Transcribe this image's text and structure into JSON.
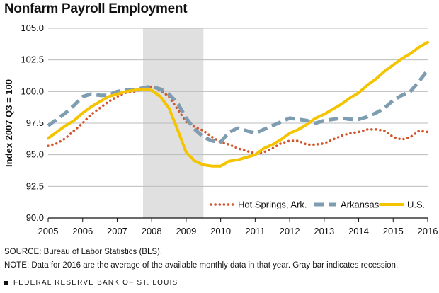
{
  "title": "Nonfarm Payroll Employment",
  "source": "SOURCE: Bureau of Labor Statistics (BLS).",
  "note": "NOTE: Data for 2016 are the average of the available monthly data in that year. Gray bar indicates recession.",
  "footer": "FEDERAL RESERVE BANK OF ST. LOUIS",
  "chart_data": {
    "type": "line",
    "title": "Nonfarm Payroll Employment",
    "xlabel": "",
    "ylabel": "Index 2007 Q3 = 100",
    "xlim": [
      2005,
      2016
    ],
    "ylim": [
      90,
      105
    ],
    "x_ticks": [
      "2005",
      "2006",
      "2007",
      "2008",
      "2009",
      "2010",
      "2011",
      "2012",
      "2013",
      "2014",
      "2015",
      "2016"
    ],
    "y_ticks": [
      "90.0",
      "92.5",
      "95.0",
      "97.5",
      "100.0",
      "102.5",
      "105.0"
    ],
    "grid": "horizontal",
    "legend_position": "bottom-right",
    "recession": [
      2007.75,
      2009.5
    ],
    "colors": {
      "hot_springs": "#d4552b",
      "arkansas": "#7f9db1",
      "us": "#f5c400",
      "recession": "#e0e0e0"
    },
    "series": [
      {
        "name": "Hot Springs, Ark.",
        "style": "dotted",
        "x": [
          2005,
          2005.25,
          2005.5,
          2005.75,
          2006,
          2006.25,
          2006.5,
          2006.75,
          2007,
          2007.25,
          2007.5,
          2007.75,
          2008,
          2008.25,
          2008.5,
          2008.75,
          2009,
          2009.25,
          2009.5,
          2009.75,
          2010,
          2010.25,
          2010.5,
          2010.75,
          2011,
          2011.25,
          2011.5,
          2011.75,
          2012,
          2012.25,
          2012.5,
          2012.75,
          2013,
          2013.25,
          2013.5,
          2013.75,
          2014,
          2014.25,
          2014.5,
          2014.75,
          2015,
          2015.25,
          2015.5,
          2015.75,
          2016
        ],
        "values": [
          95.7,
          95.9,
          96.3,
          96.9,
          97.5,
          98.2,
          98.7,
          99.2,
          99.6,
          99.9,
          100.0,
          100.2,
          100.4,
          100.1,
          99.6,
          98.6,
          97.6,
          97.2,
          96.9,
          96.4,
          96.0,
          95.8,
          95.5,
          95.3,
          95.1,
          95.2,
          95.5,
          95.9,
          96.1,
          96.1,
          95.8,
          95.8,
          95.9,
          96.2,
          96.5,
          96.7,
          96.8,
          97.0,
          97.0,
          96.9,
          96.4,
          96.2,
          96.4,
          96.9,
          96.8
        ]
      },
      {
        "name": "Arkansas",
        "style": "dashed",
        "x": [
          2005,
          2005.25,
          2005.5,
          2005.75,
          2006,
          2006.25,
          2006.5,
          2006.75,
          2007,
          2007.25,
          2007.5,
          2007.75,
          2008,
          2008.25,
          2008.5,
          2008.75,
          2009,
          2009.25,
          2009.5,
          2009.75,
          2010,
          2010.25,
          2010.5,
          2010.75,
          2011,
          2011.25,
          2011.5,
          2011.75,
          2012,
          2012.25,
          2012.5,
          2012.75,
          2013,
          2013.25,
          2013.5,
          2013.75,
          2014,
          2014.25,
          2014.5,
          2014.75,
          2015,
          2015.25,
          2015.5,
          2015.75,
          2016
        ],
        "values": [
          97.3,
          97.8,
          98.3,
          98.9,
          99.6,
          99.8,
          99.7,
          99.7,
          100.0,
          100.1,
          100.1,
          100.3,
          100.4,
          100.2,
          99.8,
          99.1,
          97.9,
          97.0,
          96.4,
          96.1,
          96.0,
          96.8,
          97.1,
          96.9,
          96.7,
          97.0,
          97.3,
          97.6,
          97.9,
          97.8,
          97.7,
          97.5,
          97.7,
          97.8,
          97.9,
          97.8,
          97.8,
          98.0,
          98.3,
          98.7,
          99.3,
          99.7,
          100.0,
          100.8,
          101.7
        ]
      },
      {
        "name": "U.S.",
        "style": "solid",
        "x": [
          2005,
          2005.25,
          2005.5,
          2005.75,
          2006,
          2006.25,
          2006.5,
          2006.75,
          2007,
          2007.25,
          2007.5,
          2007.75,
          2008,
          2008.25,
          2008.5,
          2008.75,
          2009,
          2009.25,
          2009.5,
          2009.75,
          2010,
          2010.25,
          2010.5,
          2010.75,
          2011,
          2011.25,
          2011.5,
          2011.75,
          2012,
          2012.25,
          2012.5,
          2012.75,
          2013,
          2013.25,
          2013.5,
          2013.75,
          2014,
          2014.25,
          2014.5,
          2014.75,
          2015,
          2015.25,
          2015.5,
          2015.75,
          2016
        ],
        "values": [
          96.3,
          96.8,
          97.3,
          97.7,
          98.3,
          98.8,
          99.2,
          99.6,
          99.8,
          100.0,
          100.1,
          100.2,
          100.1,
          99.6,
          98.7,
          97.0,
          95.2,
          94.5,
          94.2,
          94.1,
          94.1,
          94.5,
          94.6,
          94.8,
          95.0,
          95.5,
          95.8,
          96.2,
          96.7,
          97.0,
          97.4,
          97.9,
          98.2,
          98.6,
          99.0,
          99.5,
          99.9,
          100.5,
          101.0,
          101.6,
          102.1,
          102.6,
          103.0,
          103.5,
          103.9
        ]
      }
    ]
  }
}
